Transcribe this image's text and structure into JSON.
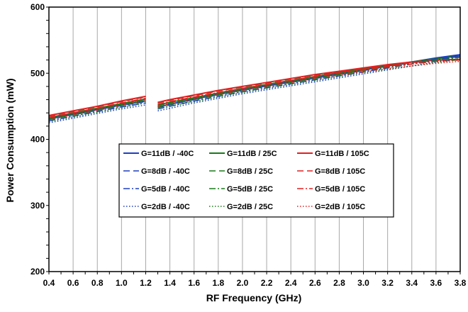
{
  "chart_data": {
    "type": "line",
    "title": "",
    "xlabel": "RF Frequency (GHz)",
    "ylabel": "Power Consumption (mW)",
    "xlim": [
      0.4,
      3.8
    ],
    "ylim": [
      200,
      600
    ],
    "xticks": [
      "0.4",
      "0.6",
      "0.8",
      "1.0",
      "1.2",
      "1.4",
      "1.6",
      "1.8",
      "2.0",
      "2.2",
      "2.4",
      "2.6",
      "2.8",
      "3.0",
      "3.2",
      "3.4",
      "3.6",
      "3.8"
    ],
    "yticks": [
      "200",
      "300",
      "400",
      "500",
      "600"
    ],
    "grid": "vertical",
    "legend_position": "center-left",
    "colors": {
      "-40C": "#1f3fbf",
      "25C": "#1a7a1a",
      "105C": "#e02020"
    },
    "segments": [
      {
        "x": [
          0.4,
          0.6,
          0.8,
          1.0,
          1.2
        ]
      },
      {
        "x": [
          1.3,
          1.4,
          1.6,
          1.8,
          2.0,
          2.2,
          2.4,
          2.6,
          2.8,
          3.0,
          3.2,
          3.4,
          3.6,
          3.8
        ]
      }
    ],
    "series": [
      {
        "name": "G=11dB / -40C",
        "temp": "-40C",
        "dash": "solid",
        "segments": [
          [
            431,
            438,
            445,
            452,
            458
          ],
          [
            449,
            453,
            461,
            468,
            475,
            481,
            487,
            493,
            499,
            505,
            511,
            517,
            523,
            528
          ]
        ]
      },
      {
        "name": "G=11dB / 25C",
        "temp": "25C",
        "dash": "solid",
        "segments": [
          [
            433,
            440,
            447,
            454,
            461
          ],
          [
            452,
            456,
            463,
            470,
            477,
            483,
            489,
            495,
            501,
            507,
            512,
            517,
            522,
            526
          ]
        ]
      },
      {
        "name": "G=11dB / 105C",
        "temp": "105C",
        "dash": "solid",
        "segments": [
          [
            436,
            443,
            450,
            458,
            465
          ],
          [
            456,
            460,
            467,
            474,
            480,
            486,
            492,
            498,
            503,
            508,
            513,
            517,
            520,
            521
          ]
        ]
      },
      {
        "name": "G=8dB / -40C",
        "temp": "-40C",
        "dash": "dash",
        "segments": [
          [
            430,
            437,
            444,
            451,
            457
          ],
          [
            448,
            452,
            460,
            467,
            474,
            480,
            486,
            492,
            498,
            504,
            510,
            516,
            522,
            527
          ]
        ]
      },
      {
        "name": "G=8dB / 25C",
        "temp": "25C",
        "dash": "dash",
        "segments": [
          [
            432,
            439,
            446,
            453,
            460
          ],
          [
            451,
            455,
            462,
            469,
            476,
            482,
            488,
            494,
            500,
            506,
            511,
            516,
            521,
            525
          ]
        ]
      },
      {
        "name": "G=8dB / 105C",
        "temp": "105C",
        "dash": "dash",
        "segments": [
          [
            435,
            442,
            449,
            457,
            464
          ],
          [
            455,
            459,
            466,
            473,
            479,
            485,
            491,
            497,
            502,
            507,
            512,
            516,
            519,
            520
          ]
        ]
      },
      {
        "name": "G=5dB / -40C",
        "temp": "-40C",
        "dash": "dashdot",
        "segments": [
          [
            428,
            435,
            442,
            449,
            455
          ],
          [
            446,
            450,
            458,
            465,
            472,
            478,
            484,
            490,
            496,
            502,
            508,
            514,
            520,
            526
          ]
        ]
      },
      {
        "name": "G=5dB / 25C",
        "temp": "25C",
        "dash": "dashdot",
        "segments": [
          [
            430,
            437,
            444,
            451,
            458
          ],
          [
            449,
            453,
            460,
            467,
            474,
            480,
            486,
            492,
            498,
            504,
            509,
            514,
            519,
            524
          ]
        ]
      },
      {
        "name": "G=5dB / 105C",
        "temp": "105C",
        "dash": "dashdot",
        "segments": [
          [
            433,
            440,
            447,
            455,
            462
          ],
          [
            453,
            457,
            464,
            471,
            477,
            483,
            489,
            495,
            500,
            505,
            510,
            514,
            518,
            520
          ]
        ]
      },
      {
        "name": "G=2dB / -40C",
        "temp": "-40C",
        "dash": "dot",
        "segments": [
          [
            425,
            432,
            439,
            446,
            452
          ],
          [
            443,
            447,
            455,
            462,
            469,
            475,
            481,
            487,
            493,
            499,
            505,
            511,
            517,
            522
          ]
        ]
      },
      {
        "name": "G=2dB / 25C",
        "temp": "25C",
        "dash": "dot",
        "segments": [
          [
            427,
            434,
            441,
            448,
            455
          ],
          [
            446,
            450,
            457,
            464,
            471,
            477,
            483,
            489,
            495,
            501,
            506,
            511,
            516,
            521
          ]
        ]
      },
      {
        "name": "G=2dB / 105C",
        "temp": "105C",
        "dash": "dot",
        "segments": [
          [
            430,
            437,
            444,
            452,
            459
          ],
          [
            450,
            454,
            461,
            468,
            474,
            480,
            486,
            492,
            497,
            502,
            507,
            511,
            515,
            518
          ]
        ]
      }
    ]
  }
}
